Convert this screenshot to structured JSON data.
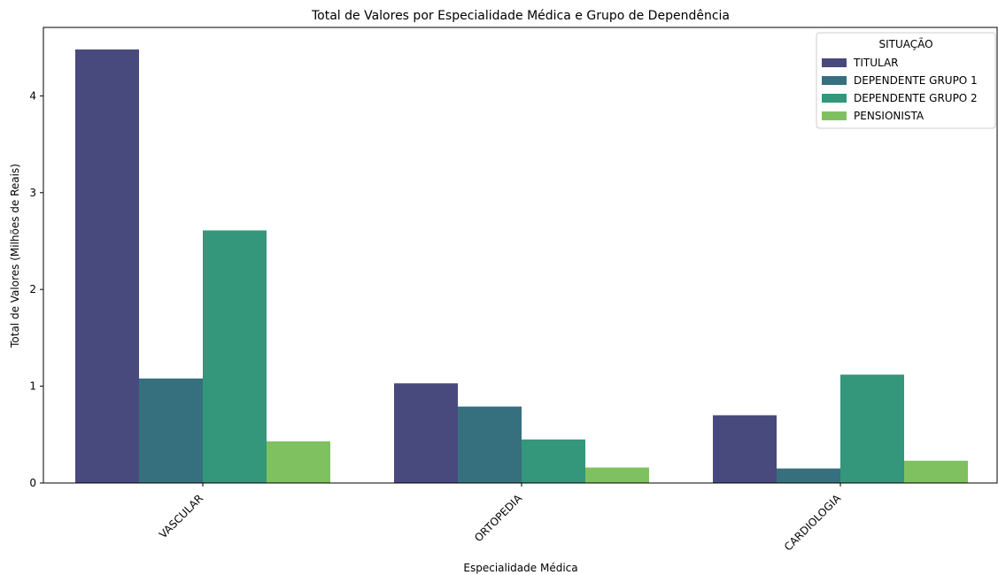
{
  "chart_data": {
    "type": "bar",
    "title": "Total de Valores por Especialidade Médica e Grupo de Dependência",
    "xlabel": "Especialidade Médica",
    "ylabel": "Total de Valores (Milhões de Reais)",
    "categories": [
      "VASCULAR",
      "ORTOPEDIA",
      "CARDIOLOGIA"
    ],
    "yticks": [
      "0",
      "1",
      "2",
      "3",
      "4"
    ],
    "ylim": [
      0,
      4.72
    ],
    "grid": false,
    "legend_title": "SITUAÇÃO",
    "legend_position": "top-right",
    "series": [
      {
        "name": "TITULAR",
        "color": "#48497c",
        "values": [
          4.48,
          1.03,
          0.7
        ]
      },
      {
        "name": "DEPENDENTE GRUPO 1",
        "color": "#366f7e",
        "values": [
          1.08,
          0.79,
          0.15
        ]
      },
      {
        "name": "DEPENDENTE GRUPO 2",
        "color": "#34967a",
        "values": [
          2.61,
          0.45,
          1.12
        ]
      },
      {
        "name": "PENSIONISTA",
        "color": "#7fc160",
        "values": [
          0.43,
          0.16,
          0.23
        ]
      }
    ]
  }
}
